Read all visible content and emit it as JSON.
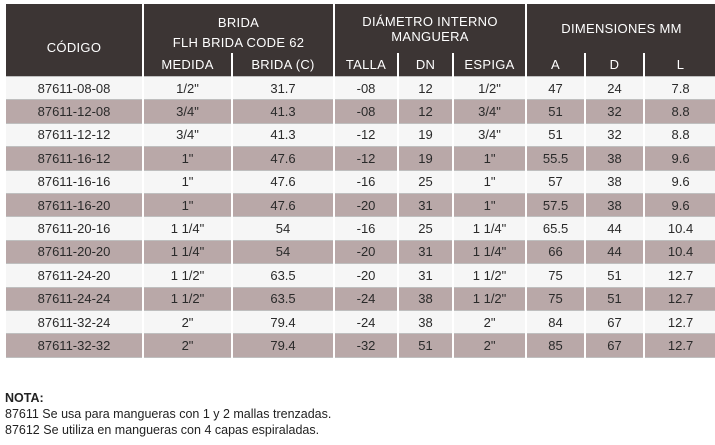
{
  "header": {
    "codigo": "CÓDIGO",
    "brida": "BRIDA",
    "brida_sub": "FLH  BRIDA CODE 62",
    "diametro": "DIÁMETRO INTERNO MANGUERA",
    "dimensiones": "DIMENSIONES MM",
    "medida": "MEDIDA",
    "brida_c": "BRIDA (C)",
    "talla": "TALLA",
    "dn": "DN",
    "espiga": "ESPIGA",
    "a": "A",
    "d": "D",
    "l": "L"
  },
  "rows": [
    [
      "87611-08-08",
      "1/2\"",
      "31.7",
      "-08",
      "12",
      "1/2\"",
      "47",
      "24",
      "7.8"
    ],
    [
      "87611-12-08",
      "3/4\"",
      "41.3",
      "-08",
      "12",
      "3/4\"",
      "51",
      "32",
      "8.8"
    ],
    [
      "87611-12-12",
      "3/4\"",
      "41.3",
      "-12",
      "19",
      "3/4\"",
      "51",
      "32",
      "8.8"
    ],
    [
      "87611-16-12",
      "1\"",
      "47.6",
      "-12",
      "19",
      "1\"",
      "55.5",
      "38",
      "9.6"
    ],
    [
      "87611-16-16",
      "1\"",
      "47.6",
      "-16",
      "25",
      "1\"",
      "57",
      "38",
      "9.6"
    ],
    [
      "87611-16-20",
      "1\"",
      "47.6",
      "-20",
      "31",
      "1\"",
      "57.5",
      "38",
      "9.6"
    ],
    [
      "87611-20-16",
      "1  1/4\"",
      "54",
      "-16",
      "25",
      "1  1/4\"",
      "65.5",
      "44",
      "10.4"
    ],
    [
      "87611-20-20",
      "1  1/4\"",
      "54",
      "-20",
      "31",
      "1  1/4\"",
      "66",
      "44",
      "10.4"
    ],
    [
      "87611-24-20",
      "1  1/2\"",
      "63.5",
      "-20",
      "31",
      "1  1/2\"",
      "75",
      "51",
      "12.7"
    ],
    [
      "87611-24-24",
      "1  1/2\"",
      "63.5",
      "-24",
      "38",
      "1  1/2\"",
      "75",
      "51",
      "12.7"
    ],
    [
      "87611-32-24",
      "2\"",
      "79.4",
      "-24",
      "38",
      "2\"",
      "84",
      "67",
      "12.7"
    ],
    [
      "87611-32-32",
      "2\"",
      "79.4",
      "-32",
      "51",
      "2\"",
      "85",
      "67",
      "12.7"
    ]
  ],
  "nota": {
    "title": "NOTA:",
    "line1": "87611 Se usa para mangueras con 1 y 2 mallas trenzadas.",
    "line2": "87612 Se utiliza en mangueras con 4 capas espiraladas."
  },
  "colors": {
    "header_bg": "#3c3534",
    "stripe": "#b9a8a8",
    "row": "#f6f6f6"
  }
}
